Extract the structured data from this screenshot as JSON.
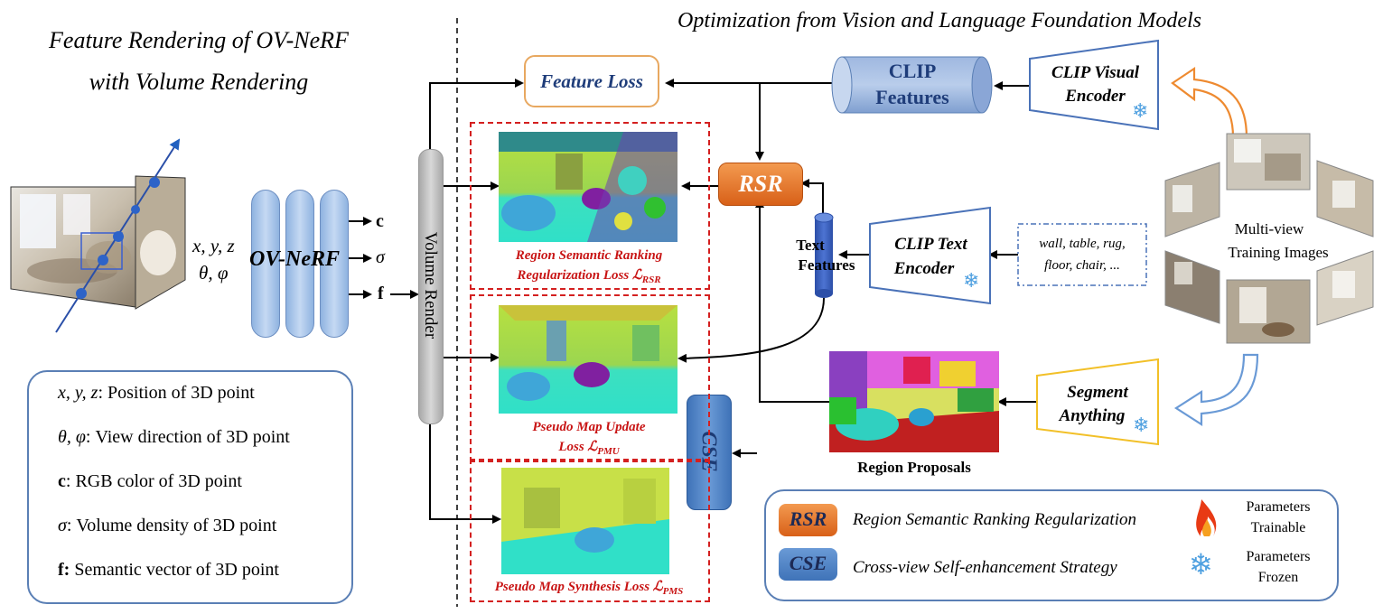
{
  "left_title": {
    "line1": "Feature Rendering of OV-NeRF",
    "line2": "with Volume Rendering"
  },
  "right_title": "Optimization from Vision and Language Foundation Models",
  "input": {
    "xyz": "x, y, z",
    "angles": "θ, φ"
  },
  "network": {
    "label": "OV-NeRF",
    "outputs": [
      "c",
      "σ",
      "f"
    ]
  },
  "volume_render": "Volume Render",
  "feature_loss": "Feature Loss",
  "rsr_badge": "RSR",
  "cse_badge": "CSE",
  "clip_features": {
    "line1": "CLIP",
    "line2": "Features"
  },
  "clip_visual_encoder": {
    "line1": "CLIP Visual",
    "line2": "Encoder"
  },
  "clip_text_encoder": {
    "line1": "CLIP Text",
    "line2": "Encoder"
  },
  "text_features": {
    "line1": "Text",
    "line2": "Features"
  },
  "text_prompt": {
    "line1": "wall, table, rug,",
    "line2": "floor, chair, ..."
  },
  "multi_view": {
    "line1": "Multi-view",
    "line2": "Training Images"
  },
  "segment_anything": {
    "line1": "Segment",
    "line2": "Anything"
  },
  "region_proposals": "Region Proposals",
  "loss_captions": {
    "rsr_line1": "Region Semantic Ranking",
    "rsr_line2": "Regularization Loss ℒ",
    "rsr_sub": "RSR",
    "pmu_line1": "Pseudo Map Update",
    "pmu_line2": "Loss ℒ",
    "pmu_sub": "PMU",
    "pms_line1": "Pseudo Map Synthesis Loss ℒ",
    "pms_sub": "PMS"
  },
  "symbol_legend": [
    {
      "sym": "x, y, z",
      "desc": ": Position of 3D point",
      "sym_style": "math"
    },
    {
      "sym": "θ, φ",
      "desc": ": View direction of 3D point",
      "sym_style": "math"
    },
    {
      "sym": "c",
      "desc": ": RGB color of 3D point",
      "sym_style": "bold"
    },
    {
      "sym": "σ",
      "desc": ": Volume density of 3D point",
      "sym_style": "math"
    },
    {
      "sym": "f:",
      "desc": " Semantic vector of 3D point",
      "sym_style": "bold"
    }
  ],
  "module_legend": {
    "rsr_abbr": "RSR",
    "rsr_full": "Region Semantic Ranking Regularization",
    "cse_abbr": "CSE",
    "cse_full": "Cross-view Self-enhancement Strategy",
    "trainable_line1": "Parameters",
    "trainable_line2": "Trainable",
    "frozen_line1": "Parameters",
    "frozen_line2": "Frozen"
  },
  "colors": {
    "rsr_orange": "#e8762a",
    "cse_blue": "#4f86c6",
    "loss_red": "#d42020",
    "feature_loss_border": "#e8a860",
    "segment_border": "#f2c028",
    "clip_border": "#4a72b8"
  },
  "icons": [
    "flame-icon",
    "snowflake-icon",
    "arrow-icon",
    "cylinder-icon"
  ]
}
